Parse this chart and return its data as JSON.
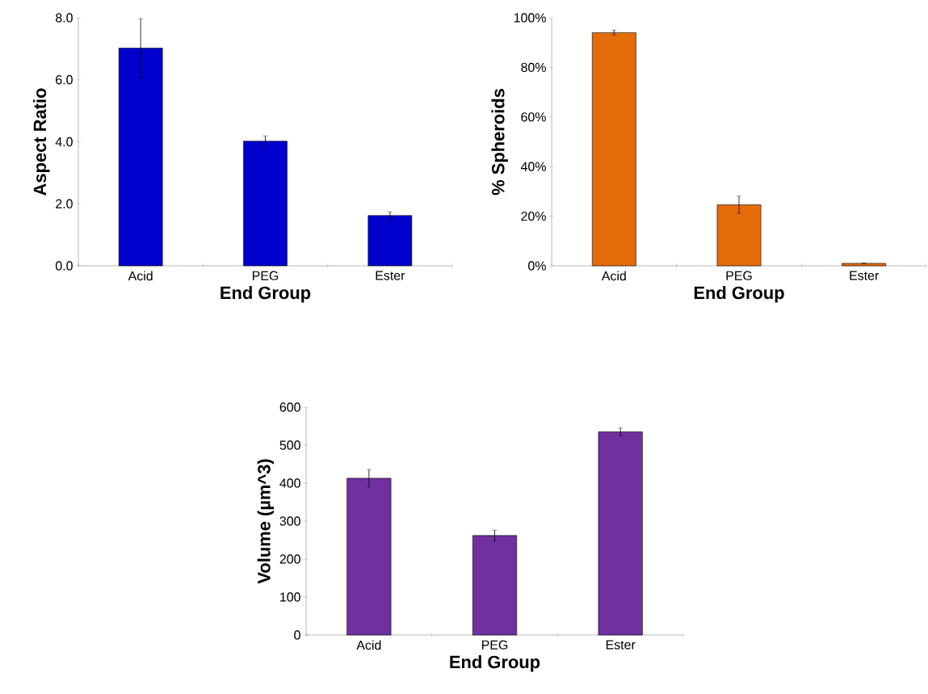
{
  "chart_data": [
    {
      "type": "bar",
      "xlabel": "End Group",
      "ylabel": "Aspect Ratio",
      "categories": [
        "Acid",
        "PEG",
        "Ester"
      ],
      "values": [
        7.02,
        4.02,
        1.62
      ],
      "errors": [
        0.95,
        0.17,
        0.12
      ],
      "color": "#0000cc",
      "ylim": [
        0,
        8
      ],
      "yticks": [
        {
          "value": 0,
          "label": "0.0"
        },
        {
          "value": 2,
          "label": "2.0"
        },
        {
          "value": 4,
          "label": "4.0"
        },
        {
          "value": 6,
          "label": "6.0"
        },
        {
          "value": 8,
          "label": "8.0"
        }
      ]
    },
    {
      "type": "bar",
      "xlabel": "End Group",
      "ylabel": "% Spheroids",
      "categories": [
        "Acid",
        "PEG",
        "Ester"
      ],
      "values": [
        94,
        24.6,
        1
      ],
      "errors": [
        1,
        3.5,
        0.2
      ],
      "color": "#e46c0a",
      "ylim": [
        0,
        100
      ],
      "yticks": [
        {
          "value": 0,
          "label": "0%"
        },
        {
          "value": 20,
          "label": "20%"
        },
        {
          "value": 40,
          "label": "40%"
        },
        {
          "value": 60,
          "label": "60%"
        },
        {
          "value": 80,
          "label": "80%"
        },
        {
          "value": 100,
          "label": "100%"
        }
      ]
    },
    {
      "type": "bar",
      "xlabel": "End Group",
      "ylabel": "Volume (µm^3)",
      "categories": [
        "Acid",
        "PEG",
        "Ester"
      ],
      "values": [
        413,
        262,
        535
      ],
      "errors": [
        23,
        14,
        10
      ],
      "color": "#7030a0",
      "ylim": [
        0,
        600
      ],
      "yticks": [
        0,
        100,
        200,
        300,
        400,
        500,
        600
      ]
    }
  ]
}
